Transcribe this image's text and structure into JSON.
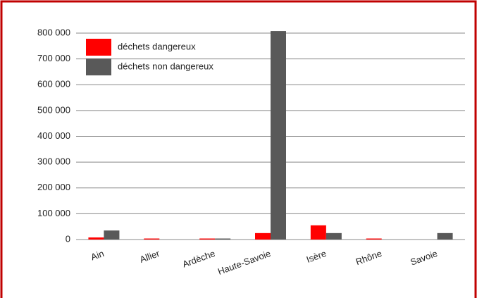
{
  "chart_data": {
    "type": "bar",
    "categories": [
      "Ain",
      "Allier",
      "Ardèche",
      "Haute-Savoie",
      "Isère",
      "Rhône",
      "Savoie"
    ],
    "series": [
      {
        "name": "déchets dangereux",
        "color": "#ff0000",
        "values": [
          8000,
          4000,
          4000,
          25000,
          55000,
          4000,
          0
        ]
      },
      {
        "name": "déchets non dangereux",
        "color": "#595959",
        "values": [
          35000,
          0,
          4000,
          808000,
          25000,
          0,
          25000
        ]
      }
    ],
    "ylim": [
      0,
      800000
    ],
    "yticks": [
      0,
      {
        "value": 100000,
        "label": "100 000"
      },
      {
        "value": 200000,
        "label": "200 000"
      },
      {
        "value": 300000,
        "label": "300 000"
      },
      {
        "value": 400000,
        "label": "400 000"
      },
      {
        "value": 500000,
        "label": "500 000"
      },
      {
        "value": 600000,
        "label": "600 000"
      },
      {
        "value": 700000,
        "label": "700 000"
      },
      {
        "value": 800000,
        "label": "800 000"
      }
    ],
    "grid": true,
    "legend": "top-left"
  }
}
